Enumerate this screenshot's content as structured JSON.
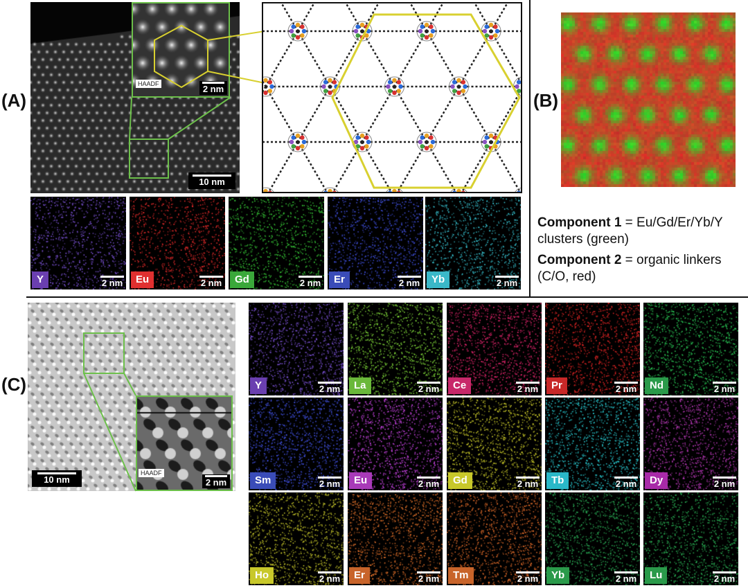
{
  "panels": {
    "A": "(A)",
    "B": "(B)",
    "C": "(C)"
  },
  "panel_a": {
    "main_scale": "10 nm",
    "inset_label": "HAADF",
    "inset_scale": "2 nm",
    "maps": [
      {
        "el": "Y",
        "color": "#6a3fb0",
        "dot": "#8a5cf0",
        "scale": "2 nm"
      },
      {
        "el": "Eu",
        "color": "#e03030",
        "dot": "#ff3030",
        "scale": "2 nm"
      },
      {
        "el": "Gd",
        "color": "#3aa83a",
        "dot": "#3ee03e",
        "scale": "2 nm"
      },
      {
        "el": "Er",
        "color": "#3a4cb8",
        "dot": "#4a5cff",
        "scale": "2 nm"
      },
      {
        "el": "Yb",
        "color": "#3ab8c8",
        "dot": "#40e0f0",
        "scale": "2 nm"
      }
    ]
  },
  "panel_b": {
    "legend": [
      {
        "name": "Component 1",
        "text": " = Eu/Gd/Er/Yb/Y",
        "text2": "clusters (green)"
      },
      {
        "name": "Component 2",
        "text": " = organic linkers",
        "text2": "(C/O, red)"
      }
    ]
  },
  "panel_c": {
    "main_scale": "10 nm",
    "inset_label": "HAADF",
    "inset_scale": "2 nm",
    "maps": [
      {
        "el": "Y",
        "color": "#6a3fb0",
        "dot": "#8a5cf0",
        "scale": "2 nm"
      },
      {
        "el": "La",
        "color": "#6ab83a",
        "dot": "#8ef040",
        "scale": "2 nm"
      },
      {
        "el": "Ce",
        "color": "#c8286a",
        "dot": "#ff2a7a",
        "scale": "2 nm"
      },
      {
        "el": "Pr",
        "color": "#c82828",
        "dot": "#ff2a2a",
        "scale": "2 nm"
      },
      {
        "el": "Nd",
        "color": "#2a9a4a",
        "dot": "#30e060",
        "scale": "2 nm"
      },
      {
        "el": "Sm",
        "color": "#3a4cb8",
        "dot": "#4a5cff",
        "scale": "2 nm"
      },
      {
        "el": "Eu",
        "color": "#a83ab8",
        "dot": "#e04cff",
        "scale": "2 nm"
      },
      {
        "el": "Gd",
        "color": "#c8c82a",
        "dot": "#e8e830",
        "scale": "2 nm"
      },
      {
        "el": "Tb",
        "color": "#2ab8c8",
        "dot": "#30e8f0",
        "scale": "2 nm"
      },
      {
        "el": "Dy",
        "color": "#a82aa8",
        "dot": "#d040d0",
        "scale": "2 nm"
      },
      {
        "el": "Ho",
        "color": "#c8c82a",
        "dot": "#e0e030",
        "scale": "2 nm"
      },
      {
        "el": "Er",
        "color": "#c8642a",
        "dot": "#ff8030",
        "scale": "2 nm"
      },
      {
        "el": "Tm",
        "color": "#c8642a",
        "dot": "#ff7a30",
        "scale": "2 nm"
      },
      {
        "el": "Yb",
        "color": "#2a9a4a",
        "dot": "#30c060",
        "scale": "2 nm"
      },
      {
        "el": "Lu",
        "color": "#2a9a4a",
        "dot": "#30c860",
        "scale": "2 nm"
      }
    ]
  },
  "colors": {
    "frame_green": "#6cc04a",
    "hex_yellow": "#d8d030",
    "divider": "#111111"
  }
}
